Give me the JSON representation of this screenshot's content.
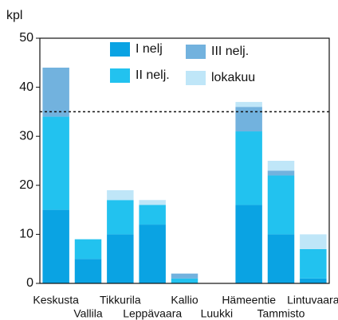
{
  "chart_data": {
    "type": "stacked_bar",
    "y_label": "kpl",
    "categories": [
      "Keskusta",
      "Vallila",
      "Tikkurila",
      "Leppävaara",
      "Kallio",
      "Luukki",
      "Hämeentie",
      "Tammisto",
      "Lintuvaara"
    ],
    "series": [
      {
        "name": "I nelj",
        "color": "#0aa3e3",
        "values": [
          15,
          5,
          10,
          12,
          0,
          0,
          16,
          10,
          1
        ]
      },
      {
        "name": "II nelj.",
        "color": "#22c2ef",
        "values": [
          19,
          4,
          7,
          4,
          1,
          0,
          15,
          12,
          6
        ]
      },
      {
        "name": "III nelj.",
        "color": "#72b2de",
        "values": [
          10,
          0,
          0,
          0,
          1,
          0,
          5,
          1,
          0
        ]
      },
      {
        "name": "lokakuu",
        "color": "#bfe6f8",
        "values": [
          0,
          0,
          2,
          1,
          0,
          0,
          1,
          2,
          3
        ]
      }
    ],
    "reference_line": 35,
    "ylim": [
      0,
      50
    ],
    "yticks": [
      0,
      10,
      20,
      30,
      40,
      50
    ]
  }
}
